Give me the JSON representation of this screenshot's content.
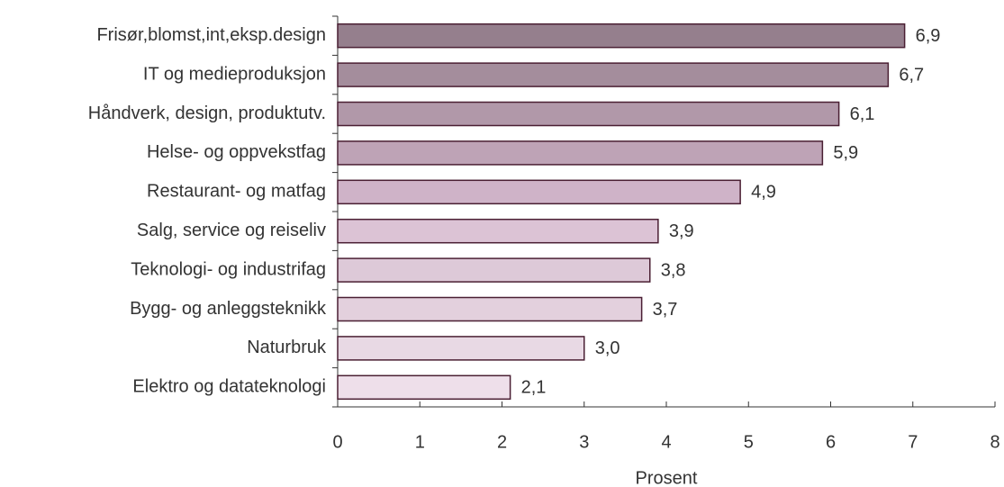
{
  "chart_data": {
    "type": "bar",
    "orientation": "horizontal",
    "categories": [
      "Frisør,blomst,int,eksp.design",
      "IT og medieproduksjon",
      "Håndverk, design, produktutv.",
      "Helse- og oppvekstfag",
      "Restaurant- og matfag",
      "Salg, service og reiseliv",
      "Teknologi- og industrifag",
      "Bygg- og anleggsteknikk",
      "Naturbruk",
      "Elektro og datateknologi"
    ],
    "values": [
      6.9,
      6.7,
      6.1,
      5.9,
      4.9,
      3.9,
      3.8,
      3.7,
      3.0,
      2.1
    ],
    "value_labels": [
      "6,9",
      "6,7",
      "6,1",
      "5,9",
      "4,9",
      "3,9",
      "3,8",
      "3,7",
      "3,0",
      "2,1"
    ],
    "colors": [
      "#957f8d",
      "#a48d9c",
      "#b198a9",
      "#bea3b6",
      "#cfb3c8",
      "#dcc3d5",
      "#ddc9d8",
      "#e3d0dd",
      "#e8d9e4",
      "#eedfea"
    ],
    "edge_color": "#4a1f33",
    "xlabel": "Prosent",
    "xlim": [
      0,
      8
    ],
    "xticks": [
      0,
      1,
      2,
      3,
      4,
      5,
      6,
      7,
      8
    ],
    "grid": false
  }
}
